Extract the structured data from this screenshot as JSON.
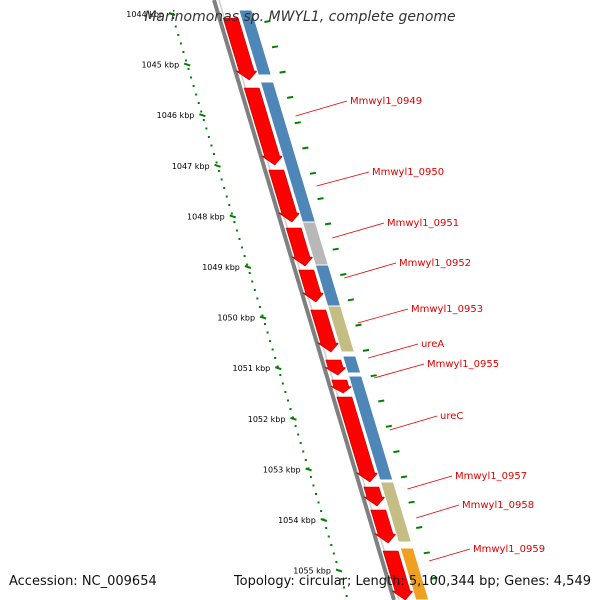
{
  "title": "Marinomonas sp. MWYL1, complete genome",
  "footer": {
    "accession": "Accession: NC_009654",
    "summary": "Topology: circular; Length: 5,100,344 bp; Genes: 4,549"
  },
  "colors": {
    "cds": "#ff0000",
    "blue_feature": "#4f86b8",
    "grey_feature": "#b8b8b8",
    "olive_feature": "#c4bd84",
    "orange_feature": "#f0a020",
    "backbone": "#808080",
    "tick": "#008000",
    "label": "#e00000"
  },
  "scale_labels": [
    "1044 kbp",
    "1045 kbp",
    "1046 kbp",
    "1047 kbp",
    "1048 kbp",
    "1049 kbp",
    "1050 kbp",
    "1051 kbp",
    "1052 kbp",
    "1053 kbp",
    "1054 kbp",
    "1055 kbp"
  ],
  "gene_labels": [
    "Mmwyl1_0949",
    "Mmwyl1_0950",
    "Mmwyl1_0951",
    "Mmwyl1_0952",
    "Mmwyl1_0953",
    "ureA",
    "Mmwyl1_0955",
    "ureC",
    "Mmwyl1_0957",
    "Mmwyl1_0958",
    "Mmwyl1_0959"
  ],
  "ring_features": [
    {
      "color": "blue_feature"
    },
    {
      "color": "grey_feature"
    },
    {
      "color": "olive_feature"
    },
    {
      "color": "orange_feature"
    }
  ]
}
